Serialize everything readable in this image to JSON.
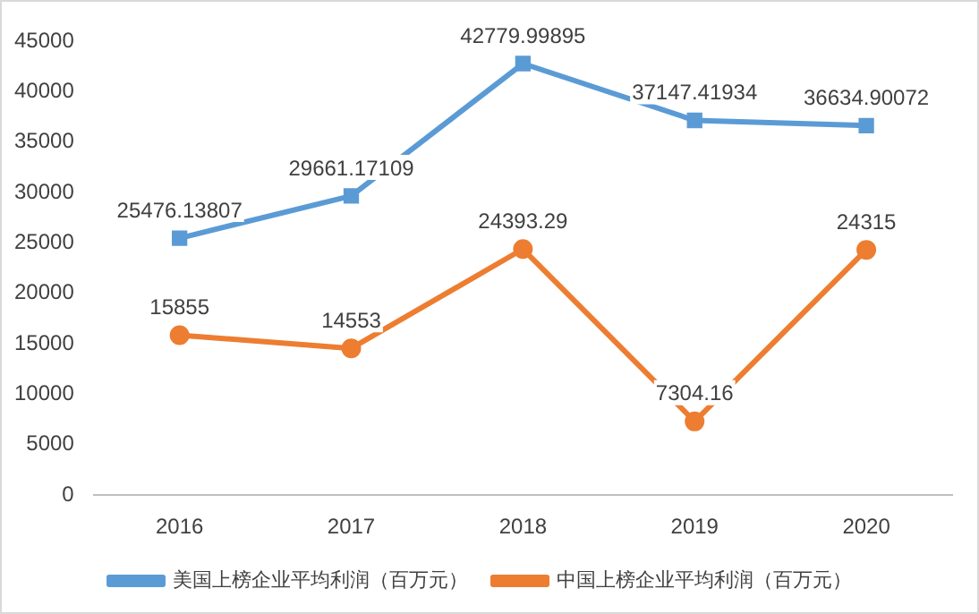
{
  "chart_data": {
    "type": "line",
    "categories": [
      "2016",
      "2017",
      "2018",
      "2019",
      "2020"
    ],
    "series": [
      {
        "name": "美国上榜企业平均利润（百万元）",
        "color": "#5b9bd5",
        "marker": "square",
        "values": [
          25476.13807,
          29661.17109,
          42779.99895,
          37147.41934,
          36634.90072
        ]
      },
      {
        "name": "中国上榜企业平均利润（百万元）",
        "color": "#ed7d31",
        "marker": "circle",
        "values": [
          15855,
          14553,
          24393.29,
          7304.16,
          24315
        ]
      }
    ],
    "ylim": [
      0,
      45000
    ],
    "yticks": [
      0,
      5000,
      10000,
      15000,
      20000,
      25000,
      30000,
      35000,
      40000,
      45000
    ],
    "grid": false,
    "legend": "bottom",
    "data_labels": true,
    "line_style": "solid"
  }
}
